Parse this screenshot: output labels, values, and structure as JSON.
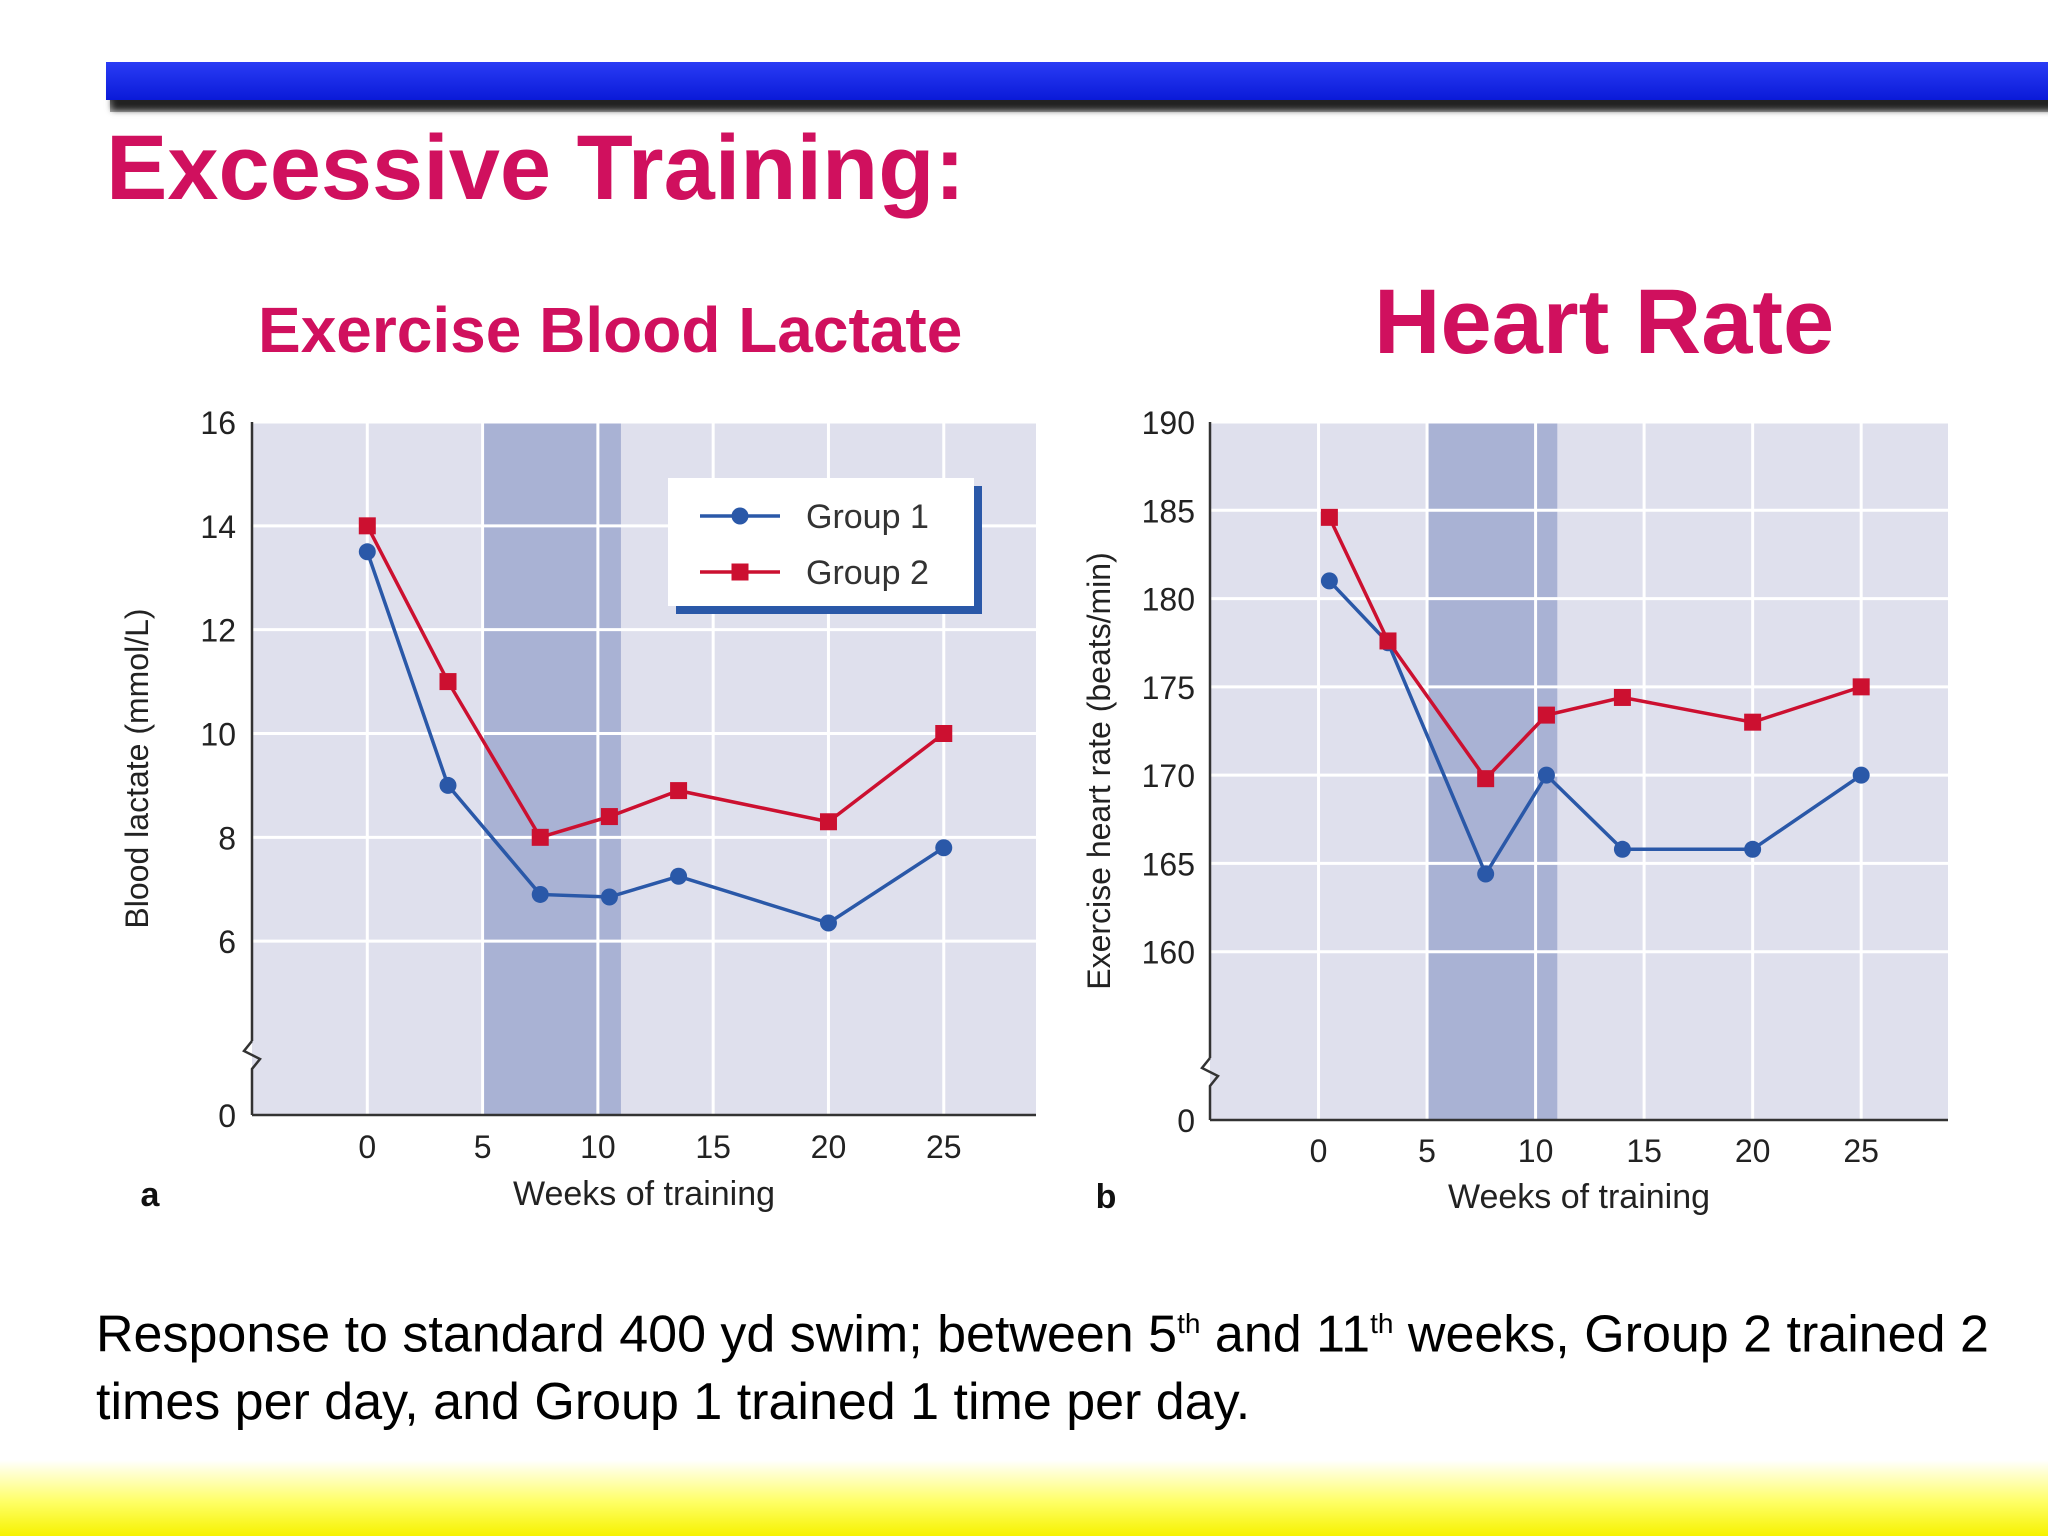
{
  "slide": {
    "title": "Excessive Training:",
    "subtitle_left": "Exercise Blood Lactate",
    "subtitle_right": "Heart Rate",
    "caption": {
      "part1": "Response to standard 400 yd swim; between 5",
      "sup1": "th",
      "part2": " and 11",
      "sup2": "th",
      "part3": " weeks, Group 2 trained 2 times per day, and Group 1 trained 1 time per day."
    },
    "colors": {
      "title": "#d0105e",
      "group1": "#2a58a8",
      "group2": "#cc1030",
      "shade": "#a9b2d4",
      "plot_bg": "#dfe0ed",
      "top_bar": "#1020e0",
      "bottom_bar": "#f6f200"
    }
  },
  "chart_data": [
    {
      "type": "line",
      "panel_label": "a",
      "xlabel": "Weeks of training",
      "ylabel": "Blood lactate (mmol/L)",
      "xlim": [
        -5,
        29
      ],
      "ylim": [
        4,
        16
      ],
      "axis_break": true,
      "x_ticks": [
        0,
        5,
        10,
        15,
        20,
        25
      ],
      "y_ticks": [
        0,
        6,
        8,
        10,
        12,
        14,
        16
      ],
      "shaded_region": [
        5,
        11
      ],
      "legend": {
        "placement": "top-right",
        "entries": [
          "Group 1",
          "Group 2"
        ]
      },
      "series": [
        {
          "name": "Group 1",
          "marker": "circle",
          "x": [
            0,
            3.5,
            7.5,
            10.5,
            13.5,
            20,
            25
          ],
          "y": [
            13.5,
            9.0,
            6.9,
            6.85,
            7.25,
            6.35,
            7.8
          ]
        },
        {
          "name": "Group 2",
          "marker": "square",
          "x": [
            0,
            3.5,
            7.5,
            10.5,
            13.5,
            20,
            25
          ],
          "y": [
            14.0,
            11.0,
            8.0,
            8.4,
            8.9,
            8.3,
            10.0
          ]
        }
      ]
    },
    {
      "type": "line",
      "panel_label": "b",
      "xlabel": "Weeks of training",
      "ylabel": "Exercise heart rate (beats/min)",
      "xlim": [
        -5,
        29
      ],
      "ylim": [
        155,
        190
      ],
      "axis_break": true,
      "x_ticks": [
        0,
        5,
        10,
        15,
        20,
        25
      ],
      "y_ticks": [
        0,
        160,
        165,
        170,
        175,
        180,
        185,
        190
      ],
      "shaded_region": [
        5,
        11
      ],
      "series": [
        {
          "name": "Group 1",
          "marker": "circle",
          "x": [
            0.5,
            3.2,
            7.7,
            10.5,
            14,
            20,
            25
          ],
          "y": [
            181,
            177.5,
            164.4,
            170,
            165.8,
            165.8,
            170
          ]
        },
        {
          "name": "Group 2",
          "marker": "square",
          "x": [
            0.5,
            3.2,
            7.7,
            10.5,
            14,
            20,
            25
          ],
          "y": [
            184.6,
            177.6,
            169.8,
            173.4,
            174.4,
            173,
            175
          ]
        }
      ]
    }
  ]
}
